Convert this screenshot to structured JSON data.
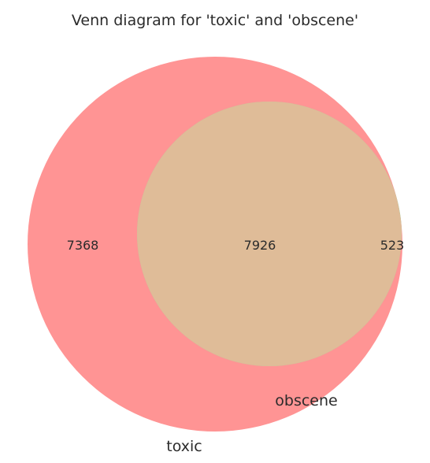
{
  "title": "Venn diagram for 'toxic' and 'obscene'",
  "sets": [
    {
      "name": "toxic",
      "color": "#ff9494"
    },
    {
      "name": "obscene",
      "color": "#99cc99"
    }
  ],
  "intersection_color": "#dfbc98",
  "chart_data": {
    "type": "venn",
    "title": "Venn diagram for 'toxic' and 'obscene'",
    "set_labels": [
      "toxic",
      "obscene"
    ],
    "regions": {
      "toxic_only": 7368,
      "both": 7926,
      "obscene_only": 523
    }
  }
}
